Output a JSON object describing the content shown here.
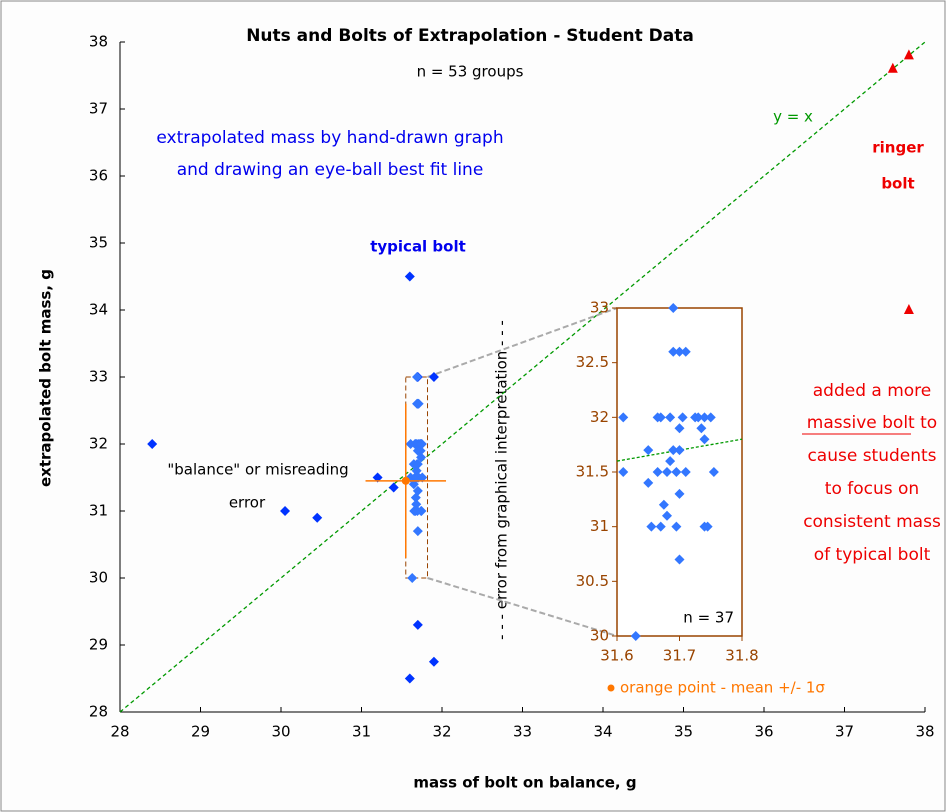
{
  "chart_data": {
    "type": "scatter",
    "title": "Nuts and Bolts of Extrapolation - Student Data",
    "subtitle": "n = 53 groups",
    "x_label": "mass of bolt on balance, g",
    "y_label": "extrapolated bolt mass, g",
    "xlim": [
      28,
      38
    ],
    "ylim": [
      28,
      38
    ],
    "xticks": [
      28,
      29,
      30,
      31,
      32,
      33,
      34,
      35,
      36,
      37,
      38
    ],
    "yticks": [
      28,
      29,
      30,
      31,
      32,
      33,
      34,
      35,
      36,
      37,
      38
    ],
    "reference_line": {
      "label": "y = x",
      "color": "#009900"
    },
    "series": [
      {
        "color": "#0033ff",
        "marker": "diamond",
        "x": [
          28.4,
          30.05,
          30.45,
          31.2,
          31.4,
          31.6,
          31.7,
          31.9,
          31.7,
          31.9,
          31.6
        ],
        "y": [
          32.0,
          31.0,
          30.9,
          31.5,
          31.35,
          34.5,
          33.0,
          33.0,
          29.3,
          28.75,
          28.5
        ]
      },
      {
        "color": "#3377ff",
        "marker": "diamond",
        "x": [
          31.61,
          31.61,
          31.63,
          31.65,
          31.65,
          31.655,
          31.665,
          31.67,
          31.665,
          31.67,
          31.675,
          31.68,
          31.68,
          31.685,
          31.685,
          31.69,
          31.69,
          31.69,
          31.695,
          31.695,
          31.7,
          31.7,
          31.7,
          31.7,
          31.7,
          31.705,
          31.71,
          31.71,
          31.725,
          31.73,
          31.735,
          31.74,
          31.74,
          31.74,
          31.745,
          31.75,
          31.755
        ],
        "y": [
          32.0,
          31.5,
          30.0,
          31.7,
          31.4,
          31.0,
          32.0,
          32.0,
          31.5,
          31.0,
          31.2,
          31.1,
          31.5,
          31.6,
          32.0,
          33.0,
          32.6,
          31.7,
          31.0,
          31.5,
          32.6,
          31.9,
          31.7,
          31.3,
          30.7,
          32.0,
          32.6,
          31.5,
          32.0,
          32.0,
          31.9,
          32.0,
          31.8,
          31.0,
          31.0,
          32.0,
          31.5
        ]
      },
      {
        "color": "#ee0000",
        "marker": "triangle",
        "x": [
          37.6,
          37.8,
          37.8
        ],
        "y": [
          37.6,
          37.8,
          34.0
        ]
      },
      {
        "color": "#ff7700",
        "marker": "circle",
        "x": [
          31.55
        ],
        "y": [
          31.45
        ],
        "xerr": [
          0.5
        ],
        "yerr": [
          1.15
        ]
      }
    ],
    "inset": {
      "series": 1,
      "label": "n = 37",
      "color": "#994400",
      "xlim": [
        31.6,
        31.8
      ],
      "ylim": [
        30,
        33
      ],
      "xticks": [
        31.6,
        31.7,
        31.8
      ],
      "yticks": [
        30,
        30.5,
        31,
        31.5,
        32,
        32.5,
        33
      ]
    },
    "annotations": [
      "extrapolated mass by hand-drawn graph",
      "and drawing an eye-ball best fit line",
      "typical bolt",
      "\"balance\" or misreading",
      "error",
      "- - - error from graphical interpretation - - -",
      "ringer",
      "bolt",
      "added a more",
      "massive bolt to",
      "cause students",
      "to focus on",
      "consistent mass",
      "of typical bolt",
      "orange point - mean +/- 1σ"
    ]
  }
}
